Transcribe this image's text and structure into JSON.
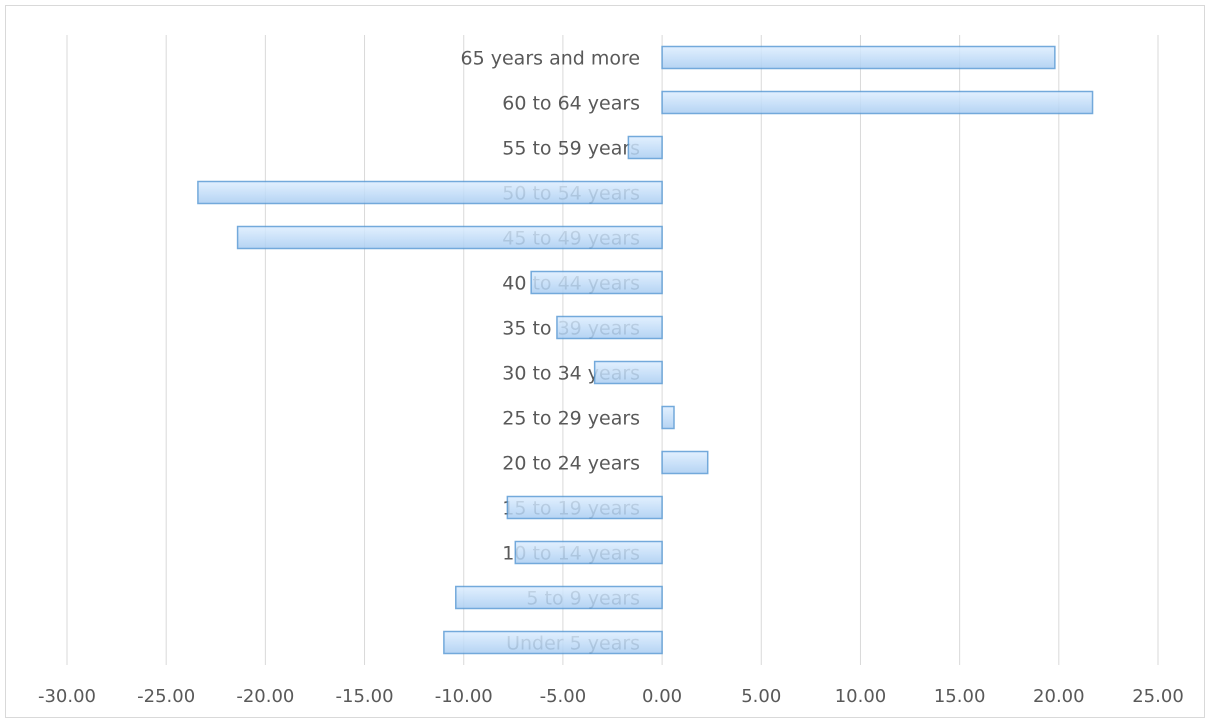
{
  "chart_data": {
    "type": "bar",
    "orientation": "horizontal",
    "categories": [
      "Under 5 years",
      "5 to 9 years",
      "10 to 14 years",
      "15 to 19 years",
      "20 to 24 years",
      "25 to 29 years",
      "30 to 34 years",
      "35 to 39 years",
      "40 to 44 years",
      "45 to 49 years",
      "50 to 54 years",
      "55 to 59 years",
      "60 to 64 years",
      "65 years and more"
    ],
    "values": [
      -11.0,
      -10.4,
      -7.4,
      -7.8,
      2.3,
      0.6,
      -3.4,
      -5.3,
      -6.6,
      -21.4,
      -23.4,
      -1.7,
      21.7,
      19.8
    ],
    "xlim": [
      -30,
      25
    ],
    "xticks": [
      "-30.00",
      "-25.00",
      "-20.00",
      "-15.00",
      "-10.00",
      "-5.00",
      "0.00",
      "5.00",
      "10.00",
      "15.00",
      "20.00",
      "25.00"
    ],
    "title": "",
    "xlabel": "",
    "ylabel": "",
    "grid": "vertical",
    "legend": "none",
    "colors": {
      "bar_fill_top": "#ddeeff",
      "bar_fill_bottom": "#a9cdf2",
      "bar_stroke": "#5b9bd5",
      "grid": "#d9d9d9",
      "text": "#595959"
    }
  }
}
